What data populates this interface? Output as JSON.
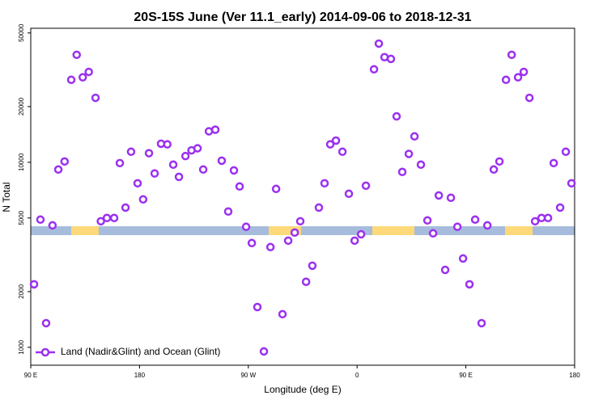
{
  "chart_data": {
    "type": "scatter",
    "title": "20S-15S June (Ver 11.1_early)   2014-09-06 to 2018-12-31",
    "x_label": "Longitude (deg E)",
    "y_label": "N Total",
    "log_y": true,
    "legend": "bottom-left",
    "xlim": [
      90,
      540
    ],
    "xticks": [
      {
        "value": 90,
        "label": "90 E"
      },
      180,
      {
        "value": 270,
        "label": "90 W"
      },
      {
        "value": 360,
        "label": "0"
      },
      {
        "value": 450,
        "label": "90 E"
      },
      180
    ],
    "ylim": [
      800,
      53000
    ],
    "yticks": [
      1000,
      2000,
      5000,
      10000,
      20000,
      50000
    ],
    "series": [
      {
        "name": "Land (Nadir&Glint) and Ocean (Glint)",
        "color": "#9b30f0",
        "x": [
          92.7,
          98,
          102.7,
          108,
          112.8,
          118,
          123.5,
          128,
          133,
          138,
          143.6,
          148,
          153,
          159,
          163.7,
          168.4,
          173,
          178.4,
          183,
          187.8,
          192.5,
          197.8,
          203,
          207.9,
          212.6,
          218,
          223,
          228,
          232.7,
          237.4,
          242.7,
          248,
          253.4,
          258.1,
          262.8,
          268.2,
          272.9,
          277.5,
          282.9,
          288.3,
          293,
          298.3,
          303,
          308.4,
          313,
          317.8,
          323,
          328.4,
          333.1,
          337.8,
          342.5,
          347.9,
          353.2,
          358,
          363.3,
          367.3,
          374,
          378,
          382.7,
          388,
          392.7,
          397.4,
          402.8,
          407.5,
          412.8,
          418.2,
          422.9,
          427.6,
          432.9,
          437.6,
          443,
          447.7,
          453,
          457.7,
          463,
          467.8,
          473.1,
          477.8,
          483.2,
          487.9,
          493.2,
          497.9,
          502.6,
          507.3,
          512.6,
          518,
          522.7,
          528,
          532.7,
          537.4
        ],
        "values": [
          2190,
          4900,
          1350,
          4560,
          9140,
          10100,
          27900,
          38100,
          28800,
          30800,
          22300,
          4800,
          5000,
          5000,
          9900,
          5690,
          11400,
          7700,
          6300,
          11200,
          8700,
          12600,
          12500,
          9710,
          8340,
          10800,
          11600,
          11900,
          9140,
          14700,
          15000,
          10200,
          5420,
          9040,
          7400,
          4480,
          3660,
          1650,
          950,
          3480,
          7180,
          1510,
          3770,
          4170,
          4800,
          2260,
          2760,
          5690,
          7700,
          12500,
          13100,
          11400,
          6760,
          3770,
          4080,
          7470,
          31800,
          43800,
          37000,
          36200,
          17700,
          8870,
          11100,
          13800,
          9710,
          4850,
          4130,
          6620,
          2620,
          6430,
          4480,
          3020,
          2190,
          4900,
          1350,
          4560,
          9140,
          10100,
          27900,
          38100,
          28800,
          30800,
          22300,
          4800,
          5000,
          5000,
          9900,
          5690,
          11400,
          7700
        ]
      }
    ]
  }
}
